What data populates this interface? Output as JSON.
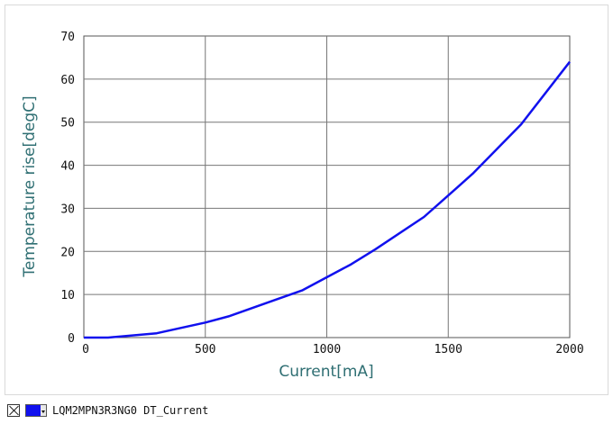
{
  "chart_data": {
    "type": "line",
    "xlabel": "Current[mA]",
    "ylabel": "Temperature rise[degC]",
    "xlim": [
      0,
      2000
    ],
    "ylim": [
      0,
      70
    ],
    "x_ticks": [
      "0",
      "500",
      "1000",
      "1500",
      "2000"
    ],
    "y_ticks": [
      "0",
      "10",
      "20",
      "30",
      "40",
      "50",
      "60",
      "70"
    ],
    "grid": true,
    "legend_position": "bottom-left",
    "series": [
      {
        "name": "LQM2MPN3R3NG0  DT_Current",
        "color": "#1111ee",
        "x": [
          0,
          100,
          300,
          500,
          600,
          800,
          900,
          1000,
          1100,
          1200,
          1400,
          1500,
          1600,
          1800,
          2000
        ],
        "y": [
          0,
          0,
          1,
          3.5,
          5,
          9,
          11,
          14,
          17,
          20.5,
          28,
          33,
          38,
          49.5,
          64
        ]
      }
    ]
  },
  "legend": {
    "label": "LQM2MPN3R3NG0  DT_Current",
    "swatch_color": "#1111ee"
  }
}
